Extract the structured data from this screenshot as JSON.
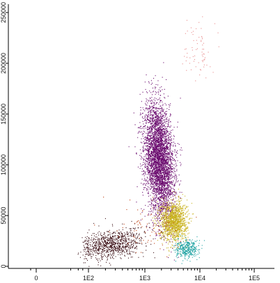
{
  "chart_data": {
    "type": "scatter",
    "title": "",
    "xlabel": "",
    "ylabel": "",
    "x_scale": "biexponential",
    "x_ticks": [
      {
        "label": "0",
        "value": 0
      },
      {
        "label": "1E2",
        "value": 100
      },
      {
        "label": "1E3",
        "value": 1000
      },
      {
        "label": "1E4",
        "value": 10000
      },
      {
        "label": "1E5",
        "value": 100000
      }
    ],
    "y_ticks": [
      {
        "label": "0",
        "value": 0
      },
      {
        "label": "50000",
        "value": 50000
      },
      {
        "label": "100000",
        "value": 100000
      },
      {
        "label": "150000",
        "value": 150000
      },
      {
        "label": "200000",
        "value": 200000
      },
      {
        "label": "250000",
        "value": 250000
      }
    ],
    "xlim": [
      -30,
      150000
    ],
    "ylim": [
      -2000,
      265000
    ],
    "grid": false,
    "series": [
      {
        "color": "#6a0a6e",
        "center_x": 1800,
        "center_y": 105000,
        "spread_x_decades": 0.13,
        "spread_y": 28000,
        "count": 4200
      },
      {
        "color": "#c9b21e",
        "center_x": 3300,
        "center_y": 45000,
        "spread_x_decades": 0.12,
        "spread_y": 9500,
        "count": 1400
      },
      {
        "color": "#3a0e14",
        "center_x": 260,
        "center_y": 22000,
        "spread_x_decades": 0.28,
        "spread_y": 7000,
        "count": 900
      },
      {
        "color": "#1aa0a0",
        "center_x": 5800,
        "center_y": 17000,
        "spread_x_decades": 0.11,
        "spread_y": 4500,
        "count": 350
      },
      {
        "color": "#e88a8a",
        "center_x": 9000,
        "center_y": 215000,
        "spread_x_decades": 0.12,
        "spread_y": 14000,
        "count": 70
      },
      {
        "color": "#c04010",
        "center_x": 1200,
        "center_y": 40000,
        "spread_x_decades": 0.3,
        "spread_y": 15000,
        "count": 80
      }
    ]
  }
}
